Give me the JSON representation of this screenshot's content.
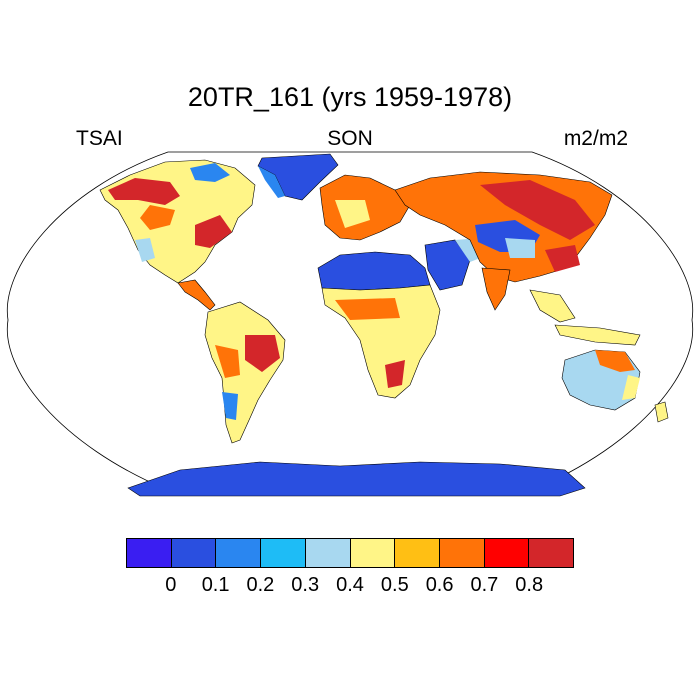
{
  "title": "20TR_161 (yrs 1959-1978)",
  "left_label": "TSAI",
  "center_label": "SON",
  "right_label": "m2/m2",
  "colorbar": {
    "colors": [
      "#3a1ef2",
      "#2a4fe0",
      "#2a86f0",
      "#1ebcf6",
      "#a8d8f0",
      "#fff587",
      "#ffbf14",
      "#ff7308",
      "#ff0000",
      "#d3262a"
    ],
    "labels": [
      "0",
      "0.1",
      "0.2",
      "0.3",
      "0.4",
      "0.5",
      "0.6",
      "0.7",
      "0.8"
    ]
  },
  "map": {
    "projection": "Robinson",
    "background": "#ffffff",
    "ocean": "#ffffff",
    "coastline_color": "#000000"
  }
}
